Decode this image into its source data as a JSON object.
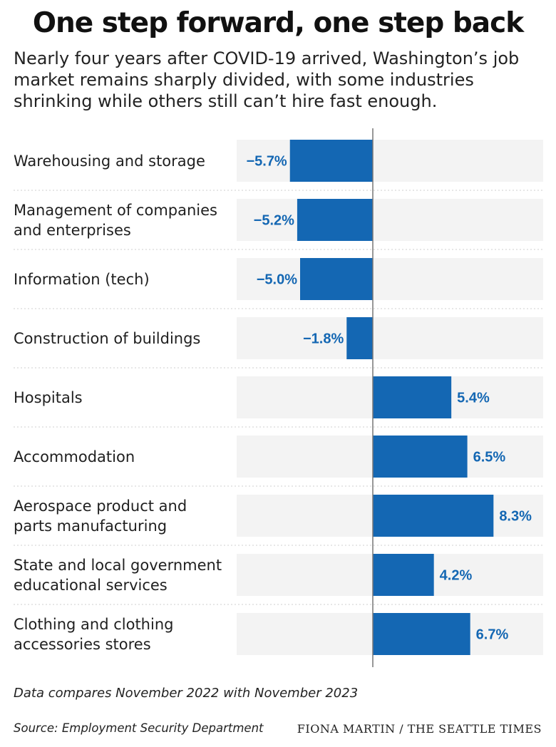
{
  "title": "One step forward, one step back",
  "subtitle": "Nearly four years after COVID-19 arrived, Washington’s job market remains sharply divided, with some industries shrinking while others still can’t hire fast enough.",
  "chart_data": {
    "type": "bar",
    "orientation": "horizontal",
    "categories": [
      [
        "Warehousing and storage"
      ],
      [
        "Management of companies",
        "and enterprises"
      ],
      [
        "Information (tech)"
      ],
      [
        "Construction of buildings"
      ],
      [
        "Hospitals"
      ],
      [
        "Accommodation"
      ],
      [
        "Aerospace product and",
        "parts manufacturing"
      ],
      [
        "State and local government",
        "educational services"
      ],
      [
        "Clothing and clothing",
        "accessories stores"
      ]
    ],
    "values": [
      -5.7,
      -5.2,
      -5.0,
      -1.8,
      5.4,
      6.5,
      8.3,
      4.2,
      6.7
    ],
    "value_labels": [
      "−5.7%",
      "−5.2%",
      "−5.0%",
      "−1.8%",
      "5.4%",
      "6.5%",
      "8.3%",
      "4.2%",
      "6.7%"
    ],
    "xlim": [
      -9.5,
      11.5
    ],
    "grid": false,
    "colors": {
      "bar": "#1467b3",
      "label": "#1467b3",
      "band": "#f3f3f3",
      "separator": "#cfcfcf",
      "zero_line": "#777777"
    }
  },
  "footer": {
    "note": "Data compares November 2022 with November 2023",
    "source": "Source: Employment Security Department",
    "credit": "FIONA MARTIN / THE SEATTLE TIMES"
  }
}
